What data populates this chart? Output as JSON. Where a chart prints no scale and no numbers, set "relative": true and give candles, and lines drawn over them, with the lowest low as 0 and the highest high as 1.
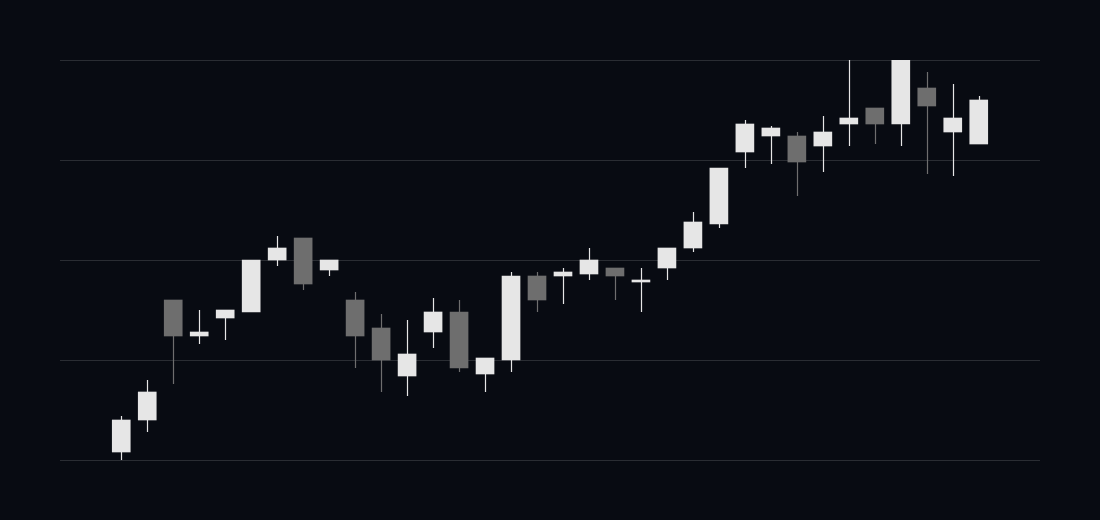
{
  "chart_data": {
    "type": "candlestick",
    "relative": true,
    "grid": "y",
    "legend": false,
    "categories": [
      null,
      null,
      null,
      null,
      null,
      null,
      null,
      null,
      null,
      null,
      null,
      null,
      null,
      null,
      null,
      null,
      null,
      null,
      null,
      null,
      null,
      null,
      null,
      null,
      null,
      null,
      null,
      null,
      null,
      null,
      null,
      null,
      null,
      null
    ],
    "ohlc": [
      [
        0.02,
        0.11,
        0,
        0.1
      ],
      [
        0.1,
        0.2,
        0.07,
        0.17
      ],
      [
        0.4,
        0.4,
        0.19,
        0.31
      ],
      [
        0.31,
        0.375,
        0.29,
        0.32
      ],
      [
        0.355,
        0.375,
        0.3,
        0.375
      ],
      [
        0.37,
        0.5,
        0.37,
        0.5
      ],
      [
        0.5,
        0.56,
        0.485,
        0.53
      ],
      [
        0.555,
        0.555,
        0.425,
        0.44
      ],
      [
        0.475,
        0.5,
        0.46,
        0.5
      ],
      [
        0.4,
        0.42,
        0.23,
        0.31
      ],
      [
        0.33,
        0.365,
        0.17,
        0.25
      ],
      [
        0.21,
        0.35,
        0.16,
        0.265
      ],
      [
        0.32,
        0.405,
        0.28,
        0.37
      ],
      [
        0.37,
        0.4,
        0.22,
        0.23
      ],
      [
        0.215,
        0.255,
        0.17,
        0.255
      ],
      [
        0.25,
        0.47,
        0.22,
        0.46
      ],
      [
        0.46,
        0.47,
        0.37,
        0.4
      ],
      [
        0.46,
        0.48,
        0.39,
        0.47
      ],
      [
        0.465,
        0.53,
        0.45,
        0.5
      ],
      [
        0.48,
        0.48,
        0.4,
        0.46
      ],
      [
        0.445,
        0.48,
        0.37,
        0.45
      ],
      [
        0.48,
        0.53,
        0.45,
        0.53
      ],
      [
        0.53,
        0.62,
        0.52,
        0.595
      ],
      [
        0.59,
        0.73,
        0.58,
        0.73
      ],
      [
        0.77,
        0.85,
        0.73,
        0.84
      ],
      [
        0.81,
        0.835,
        0.74,
        0.83
      ],
      [
        0.81,
        0.82,
        0.66,
        0.745
      ],
      [
        0.785,
        0.86,
        0.72,
        0.82
      ],
      [
        0.84,
        1,
        0.785,
        0.855
      ],
      [
        0.88,
        0.88,
        0.79,
        0.84
      ],
      [
        0.84,
        1,
        0.785,
        1
      ],
      [
        0.93,
        0.97,
        0.715,
        0.885
      ],
      [
        0.82,
        0.94,
        0.71,
        0.855
      ],
      [
        0.79,
        0.91,
        0.79,
        0.9
      ]
    ],
    "colors": [
      "#e6e6e6",
      "#e6e6e6",
      "#6e6e6e",
      "#e6e6e6",
      "#e6e6e6",
      "#e6e6e6",
      "#e6e6e6",
      "#6e6e6e",
      "#e6e6e6",
      "#6e6e6e",
      "#6e6e6e",
      "#e6e6e6",
      "#e6e6e6",
      "#6e6e6e",
      "#e6e6e6",
      "#e6e6e6",
      "#6e6e6e",
      "#e6e6e6",
      "#e6e6e6",
      "#6e6e6e",
      "#e6e6e6",
      "#e6e6e6",
      "#e6e6e6",
      "#e6e6e6",
      "#e6e6e6",
      "#e6e6e6",
      "#6e6e6e",
      "#e6e6e6",
      "#e6e6e6",
      "#6e6e6e",
      "#e6e6e6",
      "#6e6e6e",
      "#e6e6e6",
      "#e6e6e6"
    ]
  }
}
